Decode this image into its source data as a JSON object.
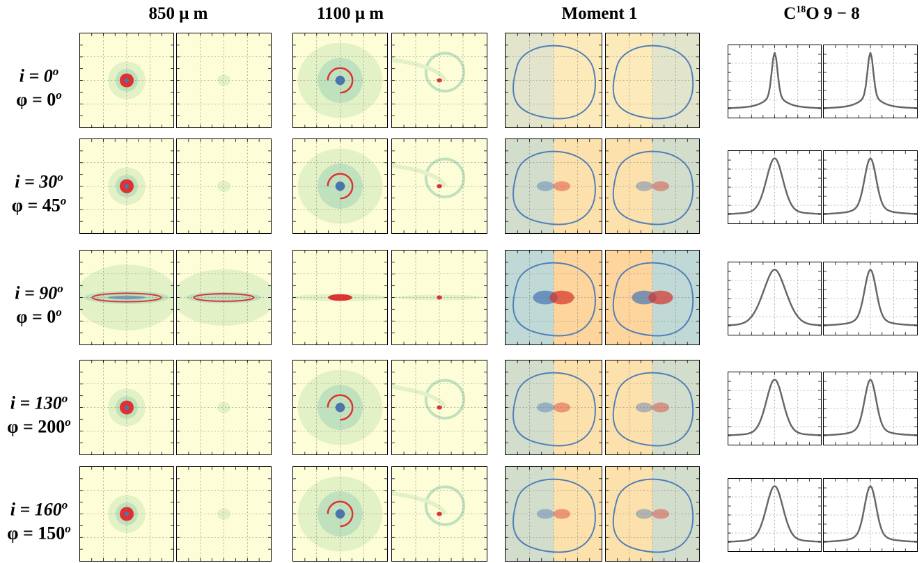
{
  "columns": {
    "c850": {
      "value": "850",
      "unit": "μ m"
    },
    "c1100": {
      "value": "1100",
      "unit": "μ m"
    },
    "moment": {
      "label": "Moment 1"
    },
    "spectrum": {
      "label": "C",
      "sup": "18",
      "rest": "O 9 − 8"
    }
  },
  "rows": [
    {
      "i_text": "i = 0",
      "phi_text": "φ = 0",
      "deg": "o",
      "incl": 0,
      "phi": 0
    },
    {
      "i_text": "i = 30",
      "phi_text": "φ = 45",
      "deg": "o",
      "incl": 30,
      "phi": 45
    },
    {
      "i_text": "i = 90",
      "phi_text": "φ = 0",
      "deg": "o",
      "incl": 90,
      "phi": 0
    },
    {
      "i_text": "i = 130",
      "phi_text": "φ = 200",
      "deg": "o",
      "incl": 130,
      "phi": 200
    },
    {
      "i_text": "i = 160",
      "phi_text": "φ = 150",
      "deg": "o",
      "incl": 160,
      "phi": 150
    }
  ],
  "colors": {
    "background_map": "#fdfdd8",
    "contour_light": "#e3f1c6",
    "contour_mid": "#bfe1bd",
    "peak_red": "#e03030",
    "peak_blue": "#4a74b0",
    "redshift": "#fdae61",
    "blueshift": "#abd9e9",
    "zero_contour": "#4f7fb8",
    "spectrum_line": "#666666"
  }
}
